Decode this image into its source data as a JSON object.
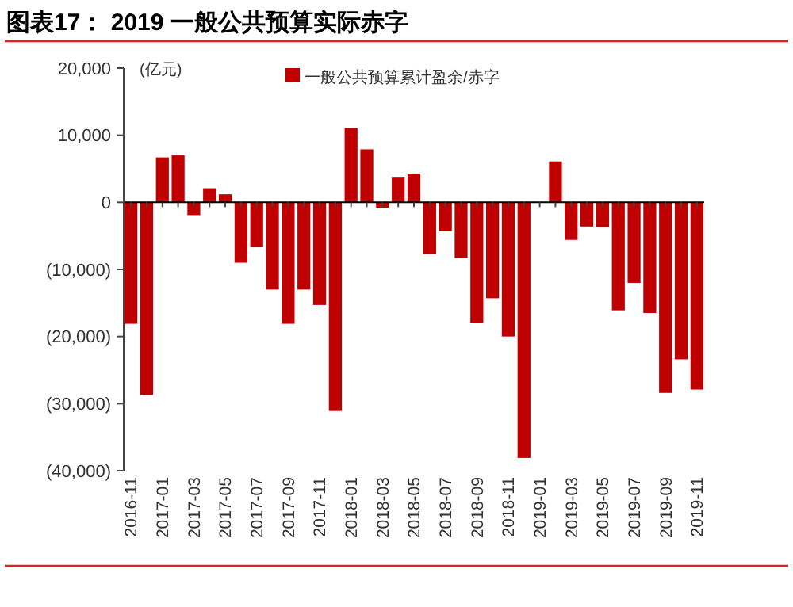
{
  "chart_data": {
    "type": "bar",
    "title": "图表17： 2019 一般公共预算实际赤字",
    "annotations": [
      "(亿元)"
    ],
    "categories": [
      "2016-11",
      null,
      "2017-01",
      null,
      "2017-03",
      null,
      "2017-05",
      null,
      "2017-07",
      null,
      "2017-09",
      null,
      "2017-11",
      null,
      "2018-01",
      null,
      "2018-03",
      null,
      "2018-05",
      null,
      "2018-07",
      null,
      "2018-09",
      null,
      "2018-11",
      null,
      "2019-01",
      null,
      "2019-03",
      null,
      "2019-05",
      null,
      "2019-07",
      null,
      "2019-09",
      null,
      "2019-11"
    ],
    "series": [
      {
        "name": "一般公共预算累计盈余/赤字",
        "color": "#c00000",
        "values": [
          -18100,
          -28700,
          6700,
          7000,
          -1900,
          2100,
          1200,
          -9000,
          -6700,
          -13000,
          -18100,
          -13000,
          -15300,
          -31100,
          11100,
          7900,
          -800,
          3800,
          4300,
          -7700,
          -4300,
          -8300,
          -18000,
          -14300,
          -20000,
          -38100,
          null,
          6100,
          -5600,
          -3600,
          -3700,
          -16100,
          -12000,
          -16500,
          -28400,
          -23400,
          -27900
        ]
      }
    ],
    "ylim": [
      -40000,
      20000
    ],
    "yticks": [
      {
        "value": -40000,
        "label": "(40,000)"
      },
      {
        "value": -30000,
        "label": "(30,000)"
      },
      {
        "value": -20000,
        "label": "(20,000)"
      },
      {
        "value": -10000,
        "label": "(10,000)"
      },
      {
        "value": 0,
        "label": "0"
      },
      {
        "value": 10000,
        "label": "10,000"
      },
      {
        "value": 20000,
        "label": "20,000"
      }
    ],
    "legend": "top right"
  }
}
